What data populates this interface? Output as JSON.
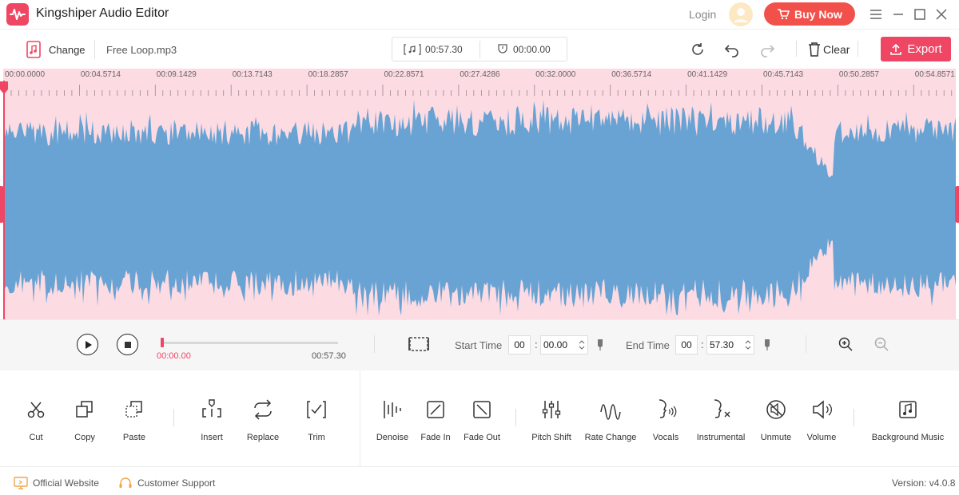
{
  "app": {
    "title": "Kingshiper Audio Editor"
  },
  "header": {
    "login_label": "Login",
    "buy_label": "Buy Now"
  },
  "toolbar": {
    "change_label": "Change",
    "file_name": "Free Loop.mp3",
    "duration": "00:57.30",
    "selection_time": "00:00.00",
    "clear_label": "Clear",
    "export_label": "Export"
  },
  "timeline": {
    "ticks": [
      "00:00.0000",
      "00:04.5714",
      "00:09.1429",
      "00:13.7143",
      "00:18.2857",
      "00:22.8571",
      "00:27.4286",
      "00:32.0000",
      "00:36.5714",
      "00:41.1429",
      "00:45.7143",
      "00:50.2857",
      "00:54.8571"
    ]
  },
  "playback": {
    "current_time": "00:00.00",
    "total_time": "00:57.30",
    "progress": 0.0,
    "start_label": "Start Time",
    "start_min": "00",
    "start_sec": "00.00",
    "end_label": "End Time",
    "end_min": "00",
    "end_sec": "57.30"
  },
  "tools": {
    "cut": "Cut",
    "copy": "Copy",
    "paste": "Paste",
    "insert": "Insert",
    "replace": "Replace",
    "trim": "Trim",
    "denoise": "Denoise",
    "fade_in": "Fade In",
    "fade_out": "Fade Out",
    "pitch_shift": "Pitch Shift",
    "rate_change": "Rate Change",
    "vocals": "Vocals",
    "instrumental": "Instrumental",
    "unmute": "Unmute",
    "volume": "Volume",
    "background_music": "Background Music"
  },
  "footer": {
    "website": "Official Website",
    "support": "Customer Support",
    "version": "Version: v4.0.8"
  },
  "colors": {
    "accent": "#ef4663",
    "wave": "#68a3d3",
    "wave_bg": "#fcdbe3"
  }
}
